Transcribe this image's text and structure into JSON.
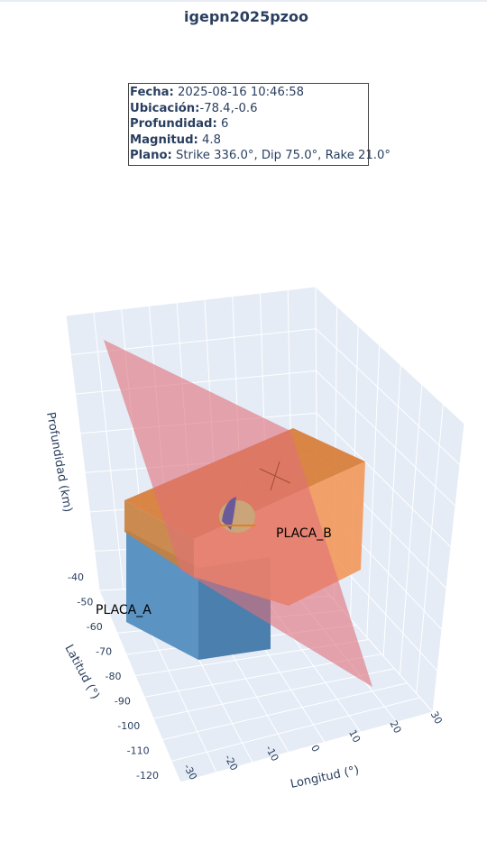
{
  "title": "igepn2025pzoo",
  "info_box": {
    "fecha_label": "Fecha:",
    "fecha": "2025-08-16 10:46:58",
    "ubicacion_label": "Ubicación:",
    "ubicacion": "-78.4,-0.6",
    "profundidad_label": "Profundidad:",
    "profundidad": "6",
    "magnitud_label": "Magnitud:",
    "magnitud": "4.8",
    "plano_label": "Plano:",
    "plano": "Strike 336.0°, Dip 75.0°, Rake 21.0°"
  },
  "chart_data": {
    "type": "3d-scene",
    "axes": {
      "x": {
        "label": "Longitud (°)",
        "ticks": [
          "-30",
          "-20",
          "-10",
          "0",
          "10",
          "20",
          "30"
        ]
      },
      "y": {
        "label": "Latitud (°)",
        "ticks": [
          "-120",
          "-110",
          "-100",
          "-90",
          "-80",
          "-70",
          "-60",
          "-50",
          "-40"
        ]
      },
      "z": {
        "label": "Profundidad (km)",
        "ticks": []
      }
    },
    "objects": [
      {
        "name": "PLACA_A",
        "type": "box",
        "color": "#5b93c3"
      },
      {
        "name": "PLACA_B",
        "type": "box",
        "color": "#ef7d3a"
      },
      {
        "name": "fault-plane",
        "type": "plane",
        "color": "#e0707a",
        "strike": 336.0,
        "dip": 75.0
      },
      {
        "name": "focal-mechanism",
        "type": "beachball",
        "color": "#caa57a"
      }
    ],
    "colors": {
      "placa_a": "#5b93c3",
      "placa_b": "#ef7d3a",
      "plane": "#e0707a",
      "grid_bg": "#e5ecf6"
    }
  }
}
